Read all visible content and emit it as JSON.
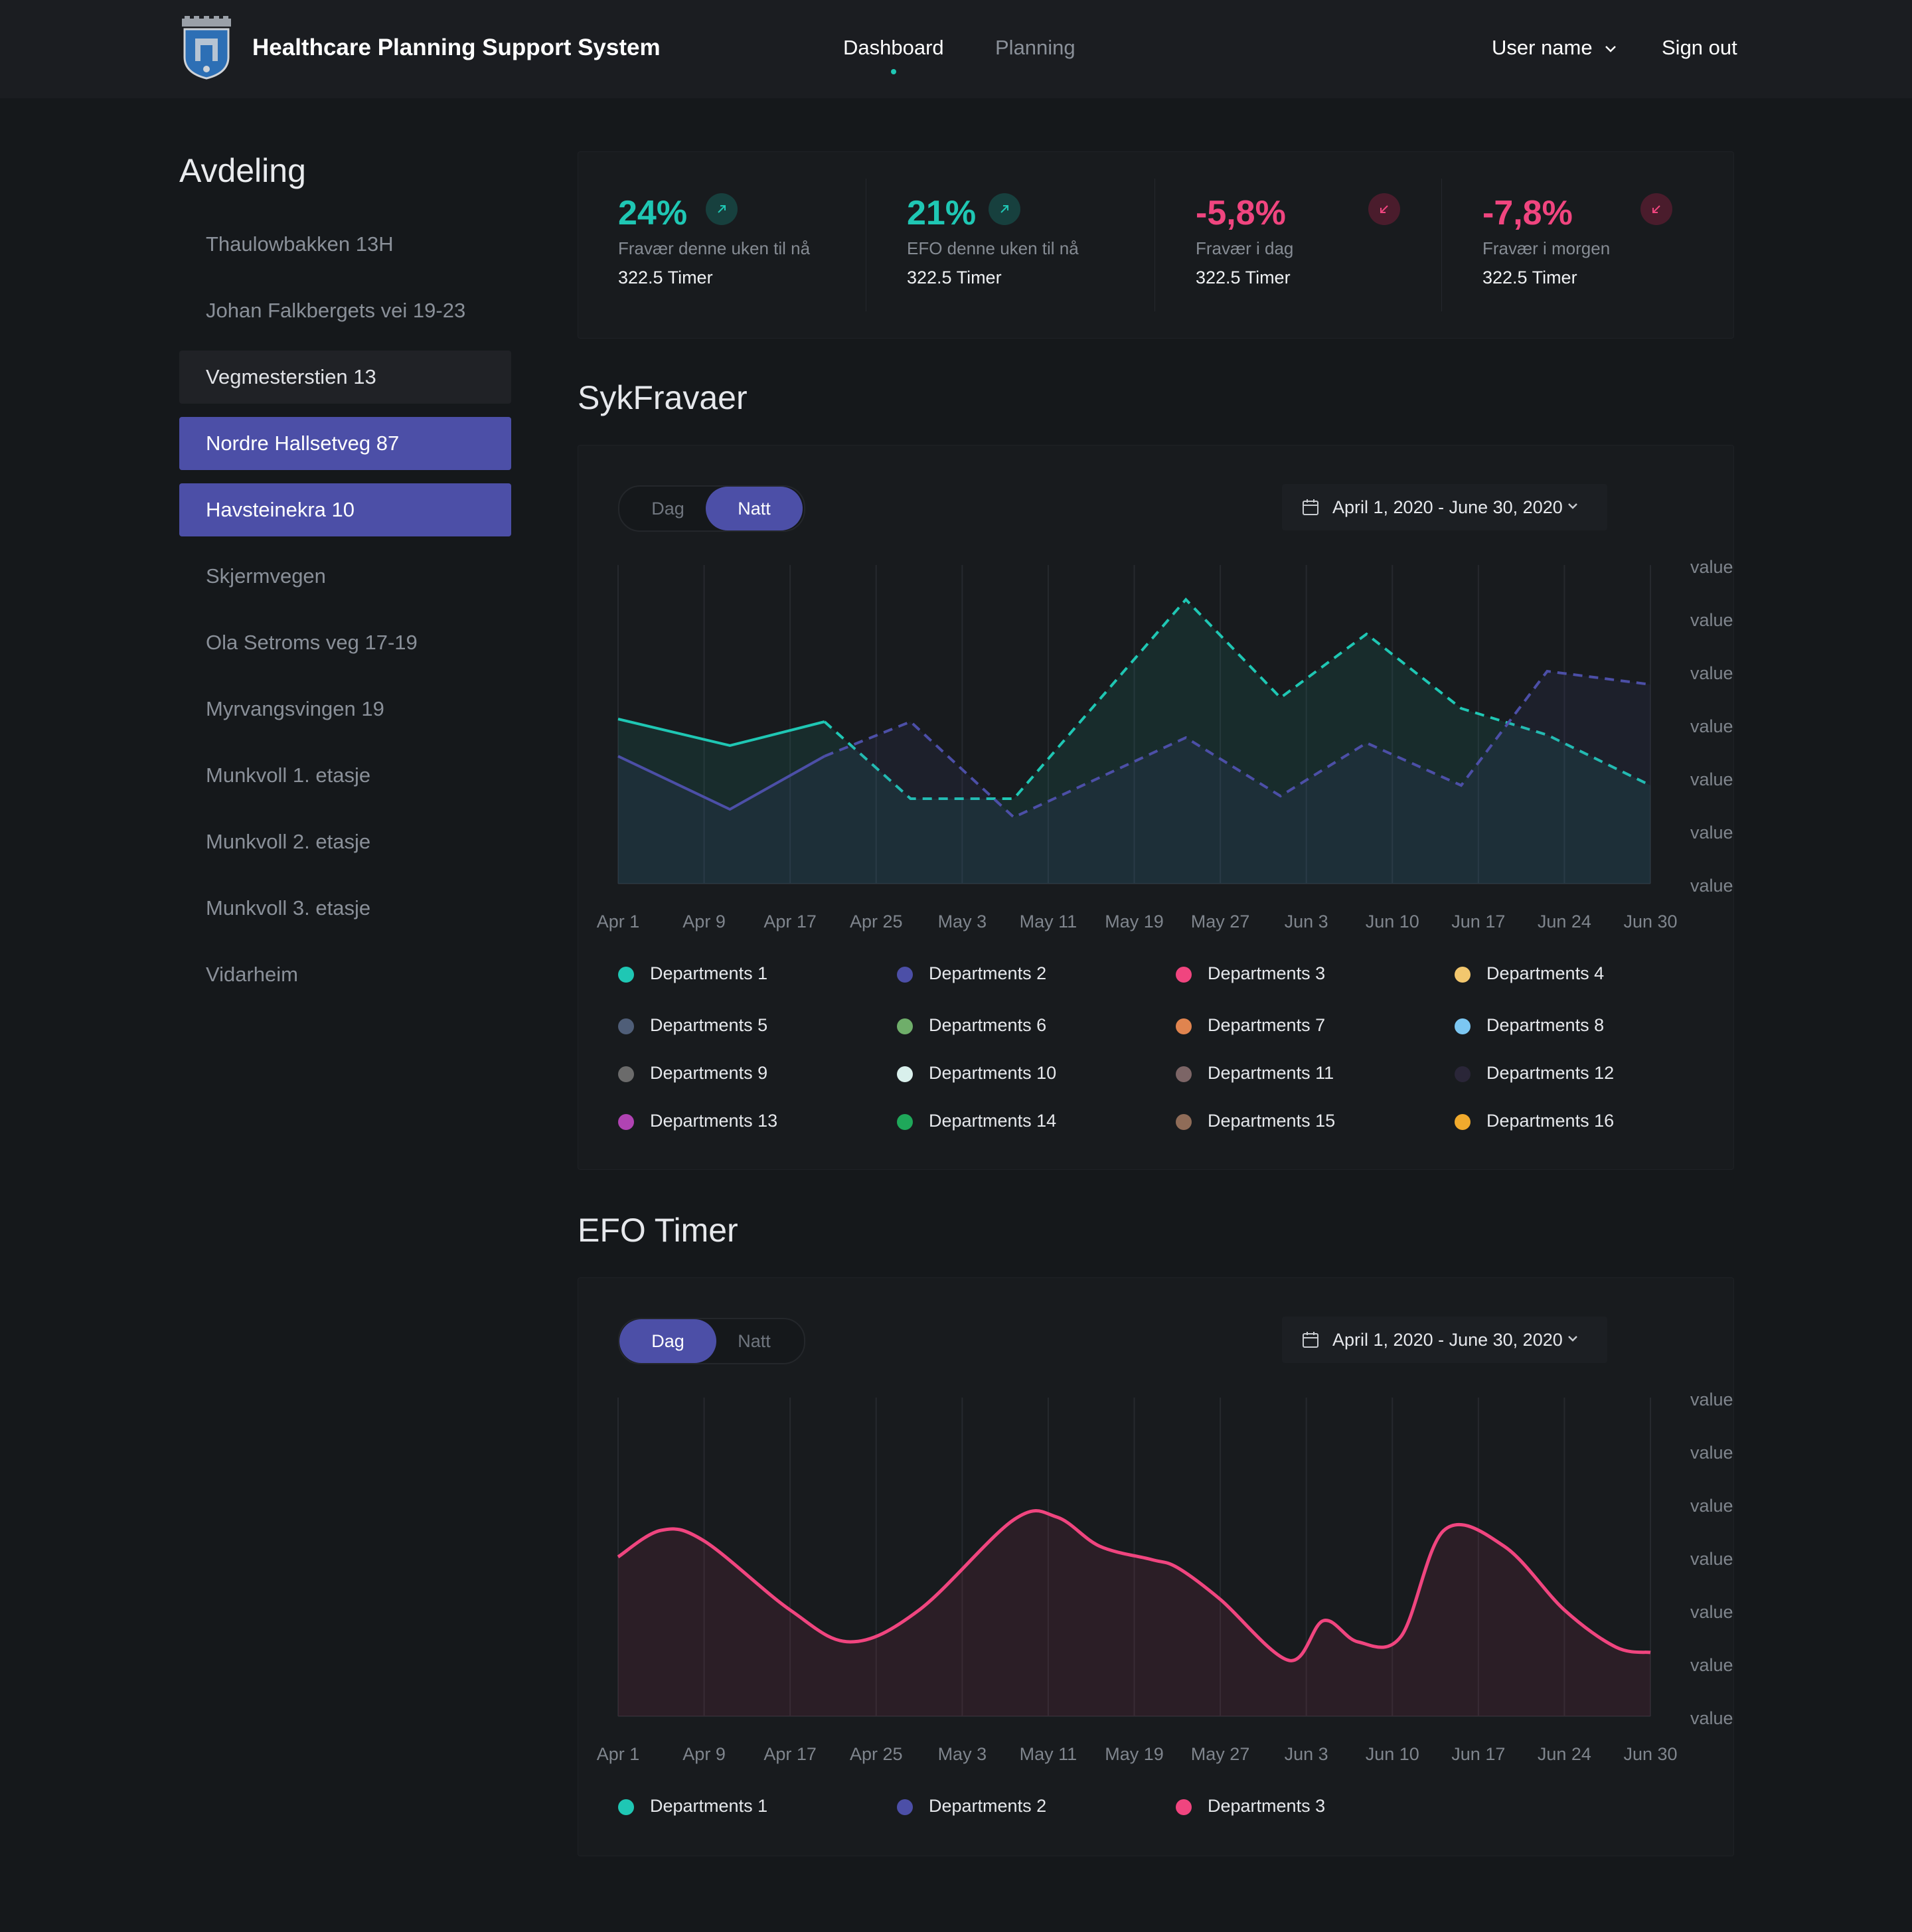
{
  "header": {
    "app_title": "Healthcare Planning Support System",
    "logo_icon": "coat-of-arms-logo",
    "nav": [
      {
        "label": "Dashboard",
        "active": true
      },
      {
        "label": "Planning",
        "active": false
      }
    ],
    "user_menu": "User name",
    "sign_out": "Sign out"
  },
  "sidebar": {
    "title": "Avdeling",
    "items": [
      {
        "label": "Thaulowbakken 13H",
        "state": "normal"
      },
      {
        "label": "Johan Falkbergets vei 19-23",
        "state": "normal"
      },
      {
        "label": "Vegmesterstien 13",
        "state": "hover"
      },
      {
        "label": "Nordre Hallsetveg 87",
        "state": "active"
      },
      {
        "label": "Havsteinekra 10",
        "state": "active"
      },
      {
        "label": "Skjermvegen",
        "state": "normal"
      },
      {
        "label": "Ola Setroms veg 17-19",
        "state": "normal"
      },
      {
        "label": "Myrvangsvingen 19",
        "state": "normal"
      },
      {
        "label": "Munkvoll 1. etasje",
        "state": "normal"
      },
      {
        "label": "Munkvoll 2. etasje",
        "state": "normal"
      },
      {
        "label": "Munkvoll 3. etasje",
        "state": "normal"
      },
      {
        "label": "Vidarheim",
        "state": "normal"
      }
    ]
  },
  "stats": [
    {
      "value": "24%",
      "label": "Fravær denne uken til nå",
      "sub": "322.5 Timer",
      "trend": "up"
    },
    {
      "value": "21%",
      "label": "EFO denne uken til nå",
      "sub": "322.5 Timer",
      "trend": "up"
    },
    {
      "value": "-5,8%",
      "label": "Fravær i dag",
      "sub": "322.5 Timer",
      "trend": "down"
    },
    {
      "value": "-7,8%",
      "label": "Fravær i morgen",
      "sub": "322.5 Timer",
      "trend": "down"
    }
  ],
  "colors": {
    "teal": "#1fc7b4",
    "indigo": "#4c4fa7",
    "pink": "#f0457f",
    "background": "#15181b"
  },
  "sykfravaer": {
    "title": "SykFravaer",
    "toggle": {
      "options": [
        "Dag",
        "Natt"
      ],
      "selected": "Natt"
    },
    "date_range": "April 1, 2020 - June 30, 2020",
    "legend": [
      {
        "name": "Departments 1",
        "color": "#1fc7b4"
      },
      {
        "name": "Departments 2",
        "color": "#4c4fa7"
      },
      {
        "name": "Departments 3",
        "color": "#f0457f"
      },
      {
        "name": "Departments 4",
        "color": "#f2c76e"
      },
      {
        "name": "Departments 5",
        "color": "#4f5e78"
      },
      {
        "name": "Departments 6",
        "color": "#6fae6a"
      },
      {
        "name": "Departments 7",
        "color": "#e0844f"
      },
      {
        "name": "Departments 8",
        "color": "#7cc7f2"
      },
      {
        "name": "Departments 9",
        "color": "#6b6b6b"
      },
      {
        "name": "Departments 10",
        "color": "#d9f0ec"
      },
      {
        "name": "Departments 11",
        "color": "#7c6566"
      },
      {
        "name": "Departments 12",
        "color": "#2a2638"
      },
      {
        "name": "Departments 13",
        "color": "#b043b3"
      },
      {
        "name": "Departments 14",
        "color": "#1fa85a"
      },
      {
        "name": "Departments 15",
        "color": "#8f6c58"
      },
      {
        "name": "Departments 16",
        "color": "#f0aa2d"
      }
    ]
  },
  "efo": {
    "title": "EFO Timer",
    "toggle": {
      "options": [
        "Dag",
        "Natt"
      ],
      "selected": "Dag"
    },
    "date_range": "April 1, 2020 - June 30, 2020",
    "legend": [
      {
        "name": "Departments 1",
        "color": "#1fc7b4"
      },
      {
        "name": "Departments 2",
        "color": "#4c4fa7"
      },
      {
        "name": "Departments 3",
        "color": "#f0457f"
      }
    ]
  },
  "chart_data": [
    {
      "type": "area",
      "title": "SykFravaer",
      "x": [
        "Apr 1",
        "Apr 9",
        "Apr 17",
        "Apr 25",
        "May 3",
        "May 11",
        "May 19",
        "May 27",
        "Jun 3",
        "Jun 10",
        "Jun 17",
        "Jun 24",
        "Jun 30"
      ],
      "y_tick_labels": [
        "value",
        "value",
        "value",
        "value",
        "value",
        "value",
        "value"
      ],
      "ylim": [
        0,
        6
      ],
      "grid": true,
      "series": [
        {
          "name": "Departments 1",
          "color": "#1fc7b4",
          "style": "solid-then-dashed",
          "points": [
            [
              0,
              3.1
            ],
            [
              1.3,
              2.6
            ],
            [
              2.4,
              3.05
            ],
            [
              3.4,
              1.6
            ],
            [
              4.6,
              1.6
            ],
            [
              6.6,
              5.35
            ],
            [
              7.7,
              3.5
            ],
            [
              8.7,
              4.7
            ],
            [
              9.8,
              3.3
            ],
            [
              10.8,
              2.8
            ],
            [
              12,
              1.85
            ]
          ]
        },
        {
          "name": "Departments 2",
          "color": "#4c4fa7",
          "style": "solid-then-dashed",
          "points": [
            [
              0,
              2.4
            ],
            [
              1.3,
              1.4
            ],
            [
              2.4,
              2.4
            ],
            [
              3.4,
              3.05
            ],
            [
              4.6,
              1.25
            ],
            [
              6.6,
              2.75
            ],
            [
              7.7,
              1.65
            ],
            [
              8.7,
              2.65
            ],
            [
              9.8,
              1.85
            ],
            [
              10.8,
              4.0
            ],
            [
              12,
              3.75
            ]
          ]
        }
      ]
    },
    {
      "type": "area",
      "title": "EFO Timer",
      "x": [
        "Apr 1",
        "Apr 9",
        "Apr 17",
        "Apr 25",
        "May 3",
        "May 11",
        "May 19",
        "May 27",
        "Jun 3",
        "Jun 10",
        "Jun 17",
        "Jun 24",
        "Jun 30"
      ],
      "y_tick_labels": [
        "value",
        "value",
        "value",
        "value",
        "value",
        "value",
        "value"
      ],
      "ylim": [
        0,
        6
      ],
      "grid": true,
      "series": [
        {
          "name": "Departments 3",
          "color": "#f0457f",
          "style": "smooth",
          "points": [
            [
              0,
              3.0
            ],
            [
              0.5,
              3.5
            ],
            [
              1.0,
              3.3
            ],
            [
              2.0,
              2.0
            ],
            [
              2.7,
              1.4
            ],
            [
              3.5,
              2.0
            ],
            [
              4.6,
              3.7
            ],
            [
              5.1,
              3.75
            ],
            [
              5.6,
              3.2
            ],
            [
              6.2,
              2.95
            ],
            [
              6.5,
              2.8
            ],
            [
              7.0,
              2.2
            ],
            [
              7.8,
              1.05
            ],
            [
              8.2,
              1.8
            ],
            [
              8.6,
              1.4
            ],
            [
              9.1,
              1.5
            ],
            [
              9.6,
              3.5
            ],
            [
              10.3,
              3.2
            ],
            [
              11.0,
              2.0
            ],
            [
              11.6,
              1.3
            ],
            [
              12,
              1.2
            ]
          ]
        }
      ]
    }
  ]
}
